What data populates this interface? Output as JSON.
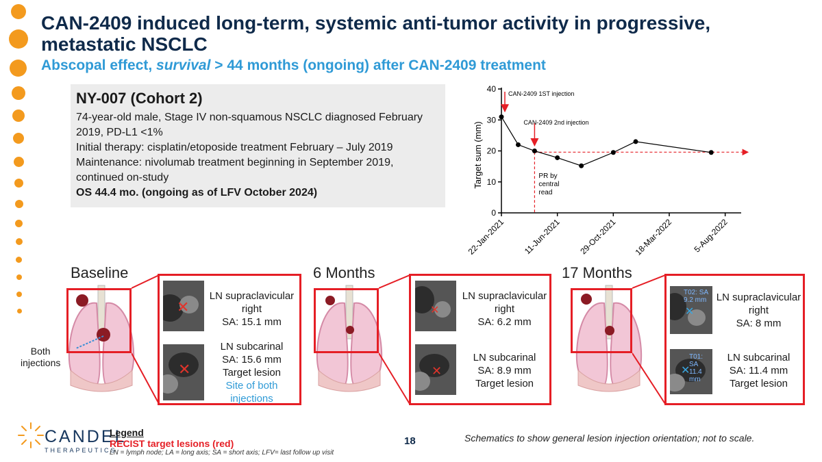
{
  "slide": {
    "title": "CAN-2409 induced long-term, systemic anti-tumor activity in progressive, metastatic NSCLC",
    "subtitle_pre": "Abscopal effect, ",
    "subtitle_em": "survival",
    "subtitle_post": " > 44 months (ongoing) after CAN-2409 treatment",
    "page_number": "18",
    "footnote": "Schematics to show general lesion injection orientation; not to scale."
  },
  "patient": {
    "id": "NY-007  (Cohort 2)",
    "line1": "74-year-old male, Stage IV non-squamous NSCLC diagnosed February 2019, PD-L1 <1%",
    "line2": "Initial therapy: cisplatin/etoposide treatment February – July 2019",
    "line3": "Maintenance: nivolumab treatment beginning in September 2019, continued on-study",
    "os": "OS 44.4 mo. (ongoing as of LFV October 2024)"
  },
  "chart_data": {
    "type": "line",
    "ylabel": "Target sum  (mm)",
    "xlabel": "",
    "ylim": [
      0,
      40
    ],
    "yticks": [
      "0",
      "10",
      "20",
      "30",
      "40"
    ],
    "xtick_labels": [
      "22-Jan-2021",
      "11-Jun-2021",
      "29-Oct-2021",
      "18-Mar-2022",
      "5-Aug-2022"
    ],
    "xtick_days": [
      0,
      140,
      280,
      420,
      560
    ],
    "series": [
      {
        "name": "Target sum",
        "x_days": [
          0,
          42,
          83,
          140,
          200,
          280,
          336,
          525
        ],
        "values": [
          31,
          22,
          20,
          17.8,
          15.2,
          19.5,
          23,
          19.5
        ]
      }
    ],
    "reference_level": 19.6,
    "annotations": {
      "first_injection": "CAN-2409 1ST injection",
      "second_injection": "CAN-2409 2nd injection",
      "pr_label": [
        "PR by",
        "central",
        "read"
      ]
    },
    "colors": {
      "line": "#000000",
      "annotation": "#e51e25"
    }
  },
  "panels": [
    {
      "heading": "Baseline",
      "lesion1": [
        "LN supraclavicular",
        "right",
        "SA: 15.1 mm"
      ],
      "lesion2": [
        "LN subcarinal",
        "SA: 15.6 mm",
        "Target lesion"
      ],
      "lesion2_note": [
        "Site of both",
        "injections"
      ]
    },
    {
      "heading": "6 Months",
      "lesion1": [
        "LN supraclavicular",
        "right",
        "SA: 6.2 mm"
      ],
      "lesion2": [
        "LN subcarinal",
        "SA: 8.9 mm",
        "Target lesion"
      ]
    },
    {
      "heading": "17 Months",
      "lesion1": [
        "LN supraclavicular",
        "right",
        "SA: 8 mm"
      ],
      "lesion2": [
        "LN subcarinal",
        "SA: 11.4 mm",
        "Target lesion"
      ],
      "ct_labels": [
        "T02: SA 9.2 mm",
        "T01: SA 11.4 mm"
      ]
    }
  ],
  "both_injections": [
    "Both",
    "injections"
  ],
  "legend": {
    "heading": "Legend",
    "recist": "RECIST target lesions (red)",
    "notes": "LN = lymph node; LA = long axis; SA = short axis; LFV= last follow up visit"
  },
  "logo": {
    "name": "CANDEL",
    "tagline": "THERAPEUTICS"
  },
  "colors": {
    "accent_orange": "#f39a1e",
    "navy": "#0f2a4a",
    "blue": "#2f9ad6",
    "red": "#e51e25"
  }
}
